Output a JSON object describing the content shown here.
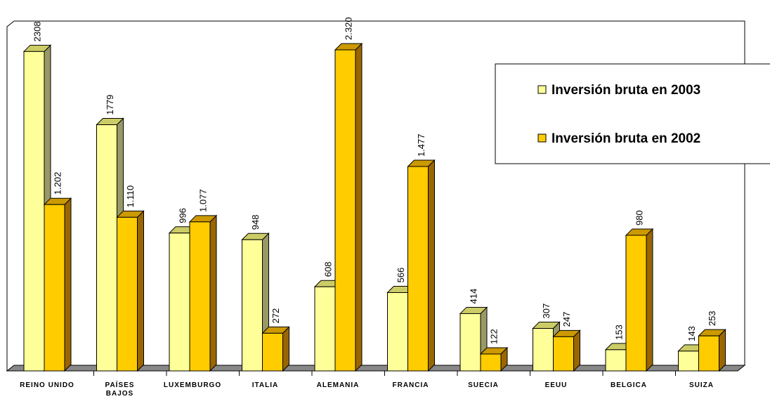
{
  "chart_data": {
    "type": "bar",
    "categories": [
      "REINO UNIDO",
      "PAÍSES BAJOS",
      "LUXEMBURGO",
      "ITALIA",
      "ALEMANIA",
      "FRANCIA",
      "SUECIA",
      "EEUU",
      "BELGICA",
      "SUIZA"
    ],
    "series": [
      {
        "name": "Inversión bruta en 2003",
        "color": "#FFFF99",
        "values": [
          2308,
          1779,
          996,
          948,
          608,
          566,
          414,
          307,
          153,
          143
        ],
        "labels": [
          "2308",
          "1779",
          "996",
          "948",
          "608",
          "566",
          "414",
          "307",
          "153",
          "143"
        ]
      },
      {
        "name": "Inversión bruta en 2002",
        "color": "#FFCC00",
        "values": [
          1202,
          1110,
          1077,
          272,
          2320,
          1477,
          122,
          247,
          980,
          253
        ],
        "labels": [
          "1.202",
          "1.110",
          "1.077",
          "272",
          "2.320",
          "1.477",
          "122",
          "247",
          "980",
          "253"
        ]
      }
    ],
    "ylim": [
      0,
      2400
    ],
    "legend": "top-right",
    "grid": false,
    "style": "3d-column"
  }
}
